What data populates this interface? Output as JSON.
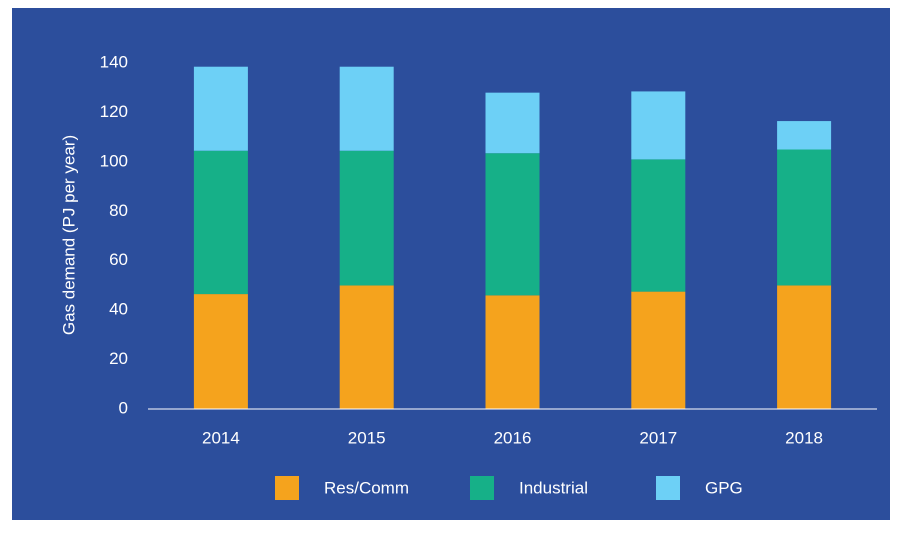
{
  "chart_data": {
    "type": "bar",
    "stacked": true,
    "y_label": "Gas demand (PJ per year)",
    "categories": [
      "2014",
      "2015",
      "2016",
      "2017",
      "2018"
    ],
    "series": [
      {
        "name": "Res/Comm",
        "color": "#f5a31d",
        "values": [
          46.5,
          50,
          46,
          47.5,
          50
        ]
      },
      {
        "name": "Industrial",
        "color": "#16b088",
        "values": [
          58,
          54.5,
          57.5,
          53.5,
          55
        ]
      },
      {
        "name": "GPG",
        "color": "#6dd0f6",
        "values": [
          34,
          34,
          24.5,
          27.5,
          11.5
        ]
      }
    ],
    "ylim": [
      0,
      140
    ],
    "yticks": [
      0,
      20,
      40,
      60,
      80,
      100,
      120,
      140
    ]
  }
}
